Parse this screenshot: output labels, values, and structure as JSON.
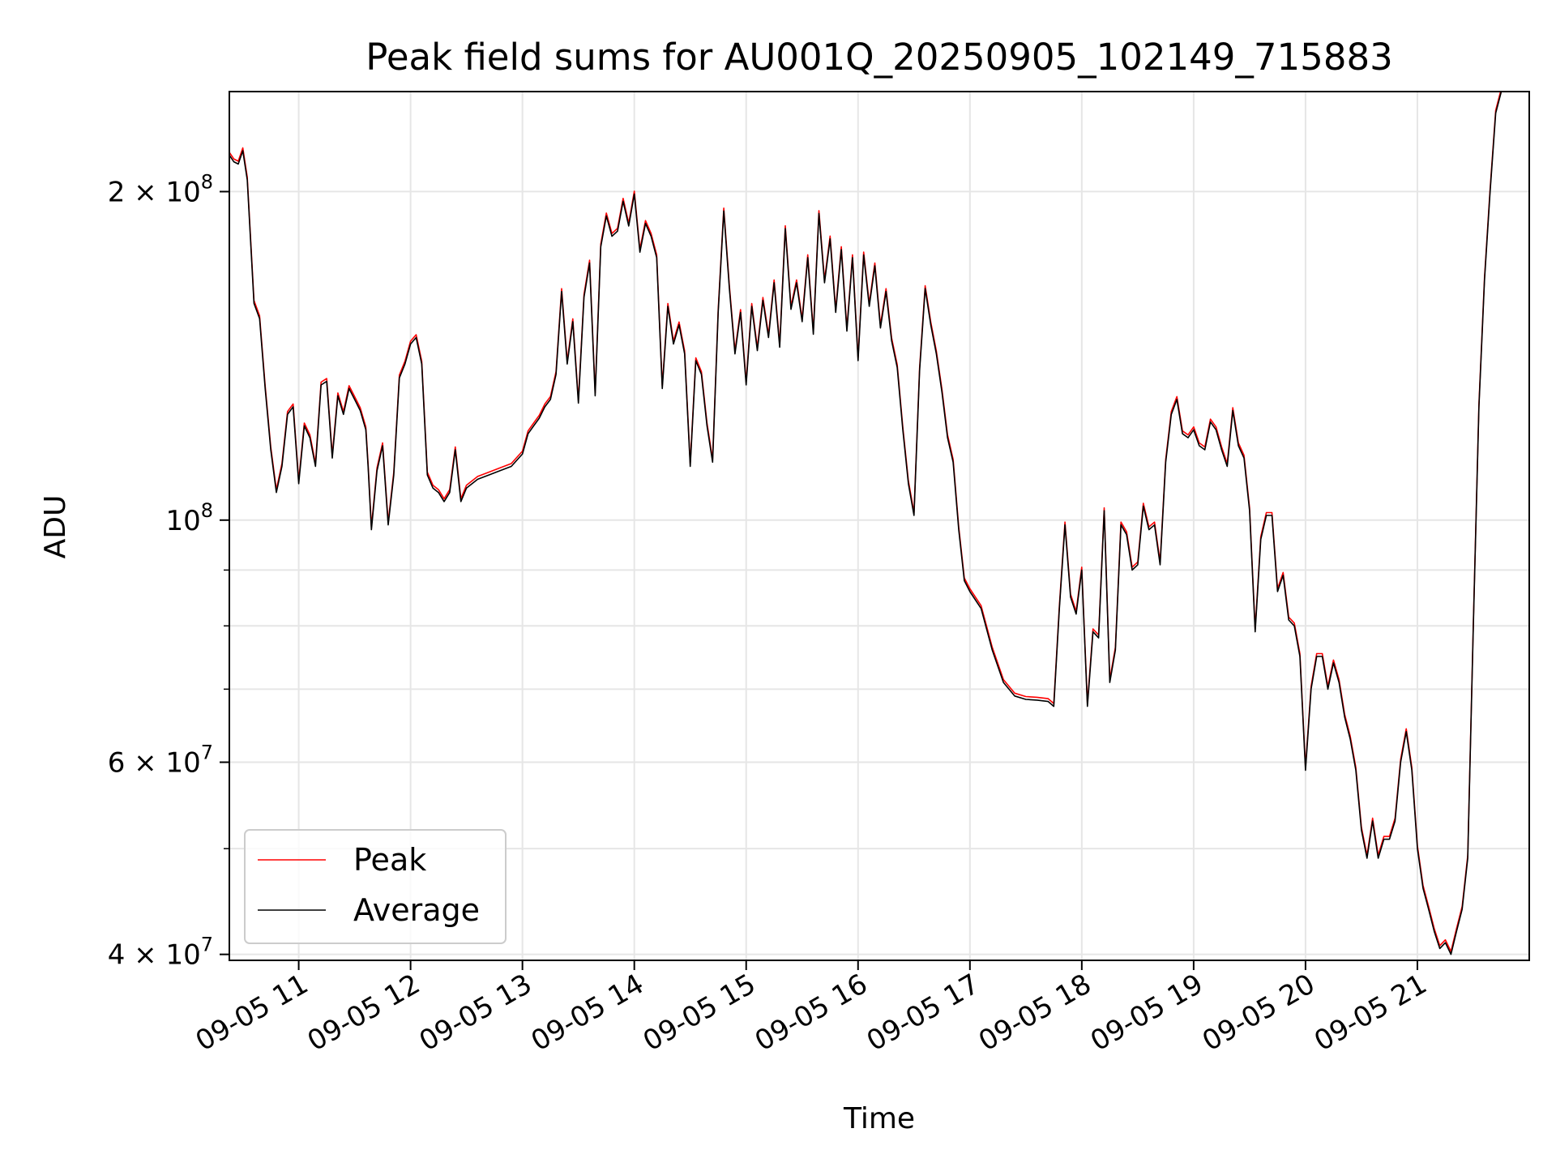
{
  "chart_data": {
    "type": "line",
    "title": "Peak field sums for AU001Q_20250905_102149_715883",
    "xlabel": "Time",
    "ylabel": "ADU",
    "yscale": "log",
    "ylim": [
      39500000,
      247000000
    ],
    "xlim_hours": [
      10.38,
      22.0
    ],
    "grid": true,
    "legend_position": "lower-left",
    "x_tick_labels": [
      "09-05 11",
      "09-05 12",
      "09-05 13",
      "09-05 14",
      "09-05 15",
      "09-05 16",
      "09-05 17",
      "09-05 18",
      "09-05 19",
      "09-05 20",
      "09-05 21"
    ],
    "x_tick_hours": [
      11,
      12,
      13,
      14,
      15,
      16,
      17,
      18,
      19,
      20,
      21
    ],
    "y_tick_labels": [
      {
        "value": 200000000,
        "base": "2 × 10",
        "exp": "8"
      },
      {
        "value": 100000000,
        "base": "10",
        "exp": "8"
      },
      {
        "value": 60000000,
        "base": "6 × 10",
        "exp": "7"
      },
      {
        "value": 40000000,
        "base": "4 × 10",
        "exp": "7"
      }
    ],
    "y_minor_ticks": [
      50000000,
      70000000,
      80000000,
      90000000
    ],
    "series": [
      {
        "name": "Peak",
        "color": "#ff0000"
      },
      {
        "name": "Average",
        "color": "#000000"
      }
    ],
    "x_hours": [
      10.38,
      10.42,
      10.46,
      10.5,
      10.54,
      10.6,
      10.65,
      10.7,
      10.75,
      10.8,
      10.85,
      10.9,
      10.95,
      11.0,
      11.05,
      11.1,
      11.15,
      11.2,
      11.25,
      11.3,
      11.35,
      11.4,
      11.45,
      11.5,
      11.55,
      11.6,
      11.62,
      11.65,
      11.7,
      11.75,
      11.8,
      11.85,
      11.9,
      11.95,
      12.0,
      12.05,
      12.1,
      12.15,
      12.2,
      12.25,
      12.3,
      12.35,
      12.4,
      12.45,
      12.5,
      12.6,
      12.7,
      12.8,
      12.9,
      13.0,
      13.05,
      13.1,
      13.15,
      13.2,
      13.25,
      13.3,
      13.35,
      13.4,
      13.45,
      13.5,
      13.55,
      13.6,
      13.65,
      13.7,
      13.75,
      13.8,
      13.85,
      13.9,
      13.95,
      14.0,
      14.05,
      14.1,
      14.15,
      14.2,
      14.25,
      14.3,
      14.35,
      14.4,
      14.45,
      14.5,
      14.55,
      14.6,
      14.65,
      14.7,
      14.75,
      14.8,
      14.85,
      14.9,
      14.95,
      15.0,
      15.05,
      15.1,
      15.15,
      15.2,
      15.25,
      15.3,
      15.35,
      15.4,
      15.45,
      15.5,
      15.55,
      15.6,
      15.65,
      15.7,
      15.75,
      15.8,
      15.85,
      15.9,
      15.95,
      16.0,
      16.05,
      16.1,
      16.15,
      16.2,
      16.25,
      16.3,
      16.35,
      16.4,
      16.45,
      16.5,
      16.55,
      16.6,
      16.65,
      16.7,
      16.75,
      16.8,
      16.85,
      16.9,
      16.95,
      17.0,
      17.1,
      17.2,
      17.3,
      17.4,
      17.5,
      17.6,
      17.7,
      17.75,
      17.8,
      17.85,
      17.9,
      17.95,
      18.0,
      18.05,
      18.1,
      18.15,
      18.2,
      18.25,
      18.3,
      18.35,
      18.4,
      18.45,
      18.5,
      18.55,
      18.6,
      18.65,
      18.7,
      18.75,
      18.8,
      18.85,
      18.9,
      18.95,
      19.0,
      19.05,
      19.1,
      19.15,
      19.2,
      19.25,
      19.3,
      19.35,
      19.4,
      19.45,
      19.5,
      19.55,
      19.6,
      19.65,
      19.7,
      19.75,
      19.8,
      19.85,
      19.9,
      19.95,
      20.0,
      20.05,
      20.1,
      20.15,
      20.2,
      20.25,
      20.3,
      20.35,
      20.4,
      20.45,
      20.5,
      20.55,
      20.6,
      20.65,
      20.7,
      20.75,
      20.8,
      20.85,
      20.9,
      20.95,
      21.0,
      21.05,
      21.1,
      21.15,
      21.2,
      21.25,
      21.3,
      21.35,
      21.4,
      21.45,
      21.5,
      21.55,
      21.6,
      21.65,
      21.7,
      21.75,
      21.8,
      21.85,
      21.9,
      21.95,
      22.0
    ],
    "y_average_millions": [
      216,
      213,
      212,
      218,
      205,
      158,
      153,
      132,
      116,
      106,
      112,
      125,
      127,
      108,
      122,
      119,
      112,
      133,
      134,
      114,
      130,
      125,
      132,
      129,
      126,
      121,
      112,
      98,
      111,
      117,
      99,
      110,
      135,
      139,
      145,
      147,
      139,
      110,
      107,
      106,
      104,
      106,
      116,
      104,
      107,
      109,
      110,
      111,
      112,
      115,
      120,
      122,
      124,
      127,
      129,
      136,
      162,
      139,
      152,
      128,
      160,
      172,
      130,
      178,
      190,
      182,
      184,
      196,
      186,
      199,
      176,
      187,
      182,
      174,
      132,
      157,
      145,
      151,
      142,
      112,
      140,
      136,
      122,
      113,
      155,
      192,
      163,
      142,
      155,
      133,
      157,
      143,
      159,
      147,
      165,
      144,
      185,
      156,
      165,
      152,
      174,
      148,
      191,
      165,
      181,
      155,
      177,
      149,
      174,
      140,
      175,
      157,
      171,
      150,
      162,
      146,
      138,
      121,
      108,
      101,
      137,
      163,
      151,
      142,
      131,
      119,
      113,
      98,
      88,
      86,
      83,
      76,
      71,
      69,
      68.5,
      68.4,
      68.2,
      67.5,
      83,
      99,
      85,
      82,
      90,
      67.5,
      79,
      78,
      102,
      71,
      76,
      99,
      97,
      90,
      91,
      103,
      98,
      99,
      91,
      113,
      125,
      129,
      120,
      119,
      121,
      117,
      116,
      123,
      121,
      116,
      112,
      126,
      117,
      114,
      102,
      79,
      96,
      101,
      101,
      86,
      89,
      81,
      80,
      75,
      59,
      70,
      75,
      75,
      70,
      74,
      71,
      66,
      63,
      59,
      52,
      49,
      53,
      49,
      51,
      51,
      53,
      60,
      64,
      59,
      50,
      46,
      44,
      42,
      40.5,
      41,
      40,
      42,
      44,
      49,
      80,
      127,
      166,
      200,
      236,
      247
    ],
    "peak_offset_ratio": 1.006
  }
}
